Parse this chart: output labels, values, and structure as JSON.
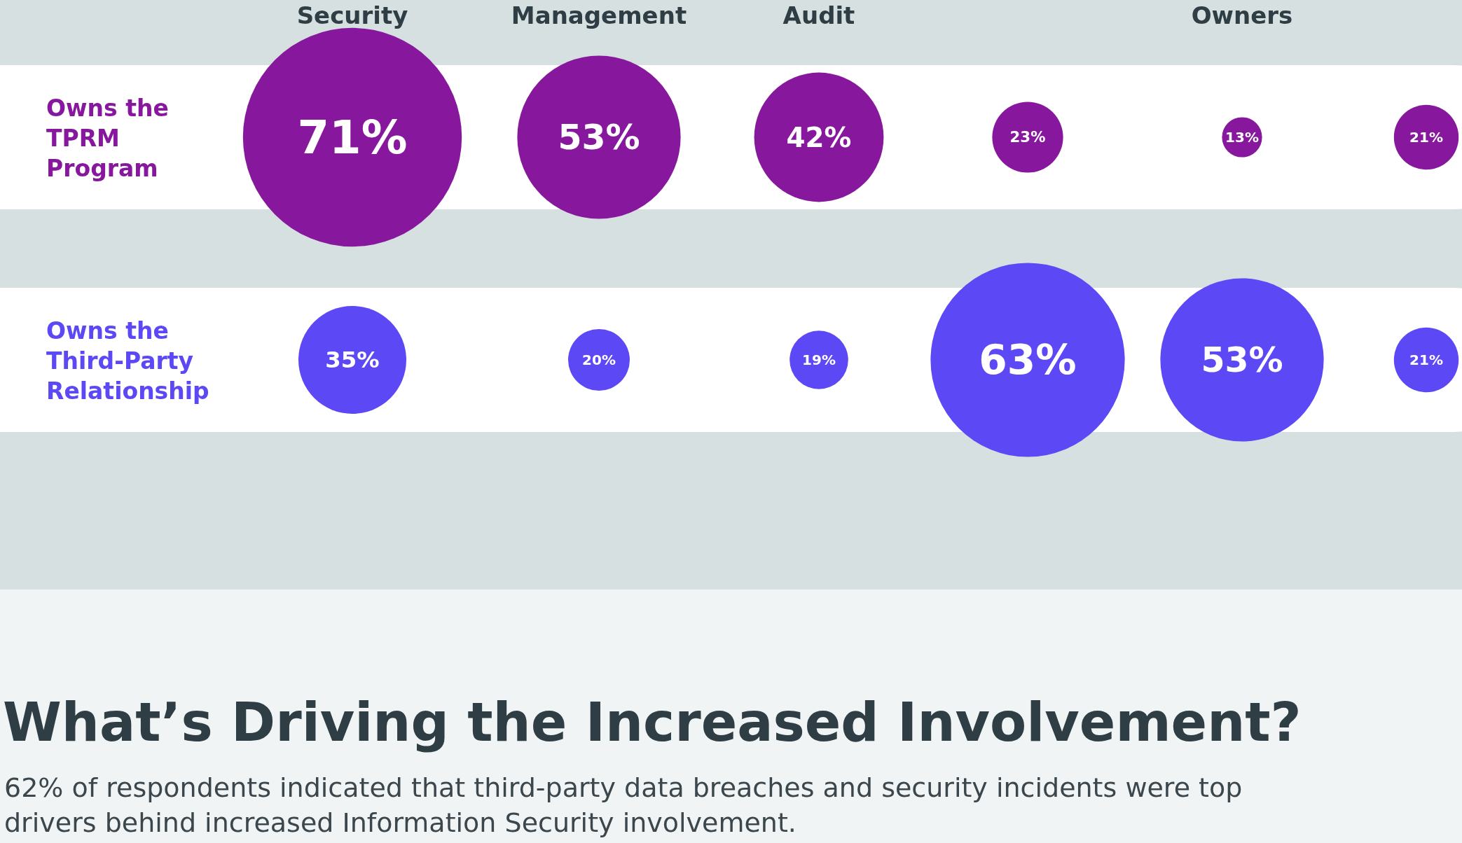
{
  "chart_data": {
    "type": "heatmap",
    "title": "What’s Driving the Increased Involvement?",
    "annotations": [
      "62% of respondents indicated that third-party data breaches and security incidents were top drivers behind increased Information Security involvement."
    ],
    "categories": [
      "Security",
      "Management",
      "Audit",
      null,
      "Owners",
      null
    ],
    "y_categories": [
      "Owns the TPRM Program",
      "Owns the Third-Party Relationship"
    ],
    "colors": [
      "#87189d",
      "#5c48f5"
    ],
    "cells": [
      [
        71,
        53,
        42,
        23,
        13,
        21
      ],
      [
        35,
        20,
        19,
        63,
        53,
        21
      ]
    ],
    "cell_labels": [
      [
        "71%",
        "53%",
        "42%",
        "23%",
        "13%",
        "21%"
      ],
      [
        "35%",
        "20%",
        "19%",
        "63%",
        "53%",
        "21%"
      ]
    ]
  }
}
